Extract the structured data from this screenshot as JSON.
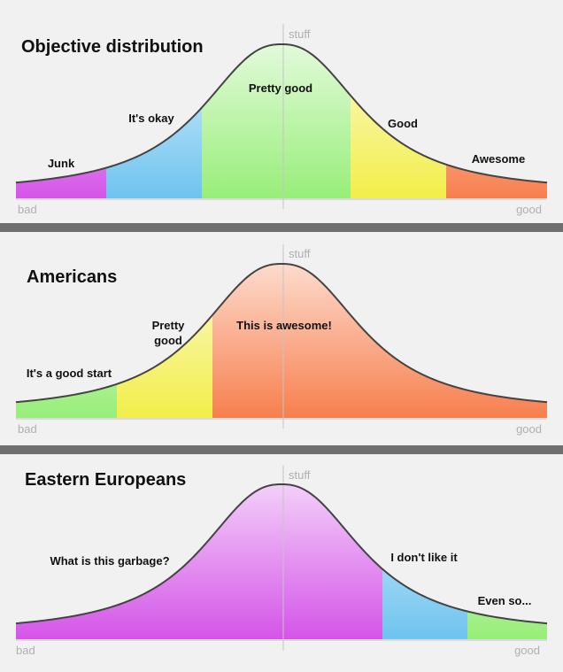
{
  "chart_data": [
    {
      "type": "area",
      "title": "Objective distribution",
      "xlabel_left": "bad",
      "xlabel_right": "good",
      "ylabel": "stuff",
      "grid": false,
      "segments": [
        {
          "label": "Junk",
          "from": 0.0,
          "to": 0.17,
          "color": "#d455e8"
        },
        {
          "label": "It's okay",
          "from": 0.17,
          "to": 0.35,
          "color": "#6ec3ef"
        },
        {
          "label": "Pretty good",
          "from": 0.35,
          "to": 0.63,
          "color": "#98ee7a"
        },
        {
          "label": "Good",
          "from": 0.63,
          "to": 0.81,
          "color": "#f2ee4a"
        },
        {
          "label": "Awesome",
          "from": 0.81,
          "to": 1.0,
          "color": "#f77f4e"
        }
      ]
    },
    {
      "type": "area",
      "title": "Americans",
      "xlabel_left": "bad",
      "xlabel_right": "good",
      "ylabel": "stuff",
      "grid": false,
      "segments": [
        {
          "label": "It's a good start",
          "from": 0.0,
          "to": 0.19,
          "color": "#98ee7a"
        },
        {
          "label": "Pretty good",
          "from": 0.19,
          "to": 0.37,
          "color": "#f2ee4a"
        },
        {
          "label": "This is awesome!",
          "from": 0.37,
          "to": 1.0,
          "color": "#f77f4e"
        }
      ]
    },
    {
      "type": "area",
      "title": "Eastern Europeans",
      "xlabel_left": "bad",
      "xlabel_right": "good",
      "ylabel": "stuff",
      "grid": false,
      "segments": [
        {
          "label": "What is this garbage?",
          "from": 0.0,
          "to": 0.69,
          "color": "#d455e8"
        },
        {
          "label": "I don't like it",
          "from": 0.69,
          "to": 0.85,
          "color": "#6ec3ef"
        },
        {
          "label": "Even so...",
          "from": 0.85,
          "to": 1.0,
          "color": "#98ee7a"
        }
      ]
    }
  ]
}
